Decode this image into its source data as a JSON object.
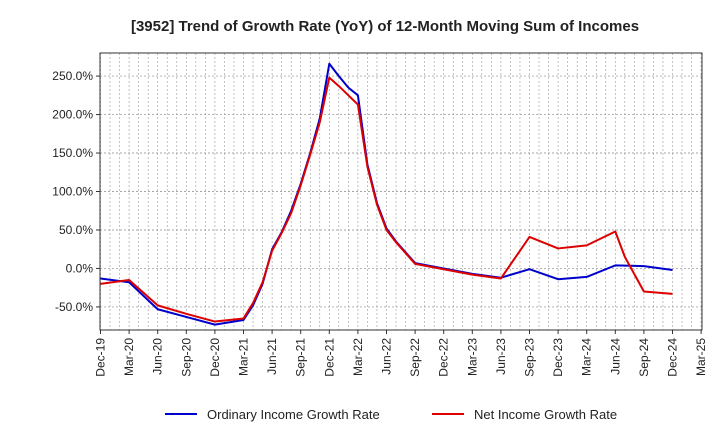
{
  "chart_data": {
    "type": "line",
    "title": "[3952]  Trend of Growth Rate (YoY) of 12-Month Moving Sum of Incomes",
    "xlabel": "",
    "ylabel": "",
    "ylim": [
      -80,
      280
    ],
    "yticks": [
      -50,
      0,
      50,
      100,
      150,
      200,
      250
    ],
    "ytick_labels": [
      "-50.0%",
      "0.0%",
      "50.0%",
      "100.0%",
      "150.0%",
      "200.0%",
      "250.0%"
    ],
    "x_tick_labels": [
      "Dec-19",
      "Mar-20",
      "Jun-20",
      "Sep-20",
      "Dec-20",
      "Mar-21",
      "Jun-21",
      "Sep-21",
      "Dec-21",
      "Mar-22",
      "Jun-22",
      "Sep-22",
      "Dec-22",
      "Mar-23",
      "Jun-23",
      "Sep-23",
      "Dec-23",
      "Mar-24",
      "Jun-24",
      "Sep-24",
      "Dec-24",
      "Mar-25"
    ],
    "grid": true,
    "legend_position": "bottom",
    "series": [
      {
        "name": "Ordinary Income Growth Rate",
        "color": "#0000cc",
        "points": [
          [
            0,
            -13
          ],
          [
            3,
            -18
          ],
          [
            6,
            -53
          ],
          [
            9,
            -63
          ],
          [
            12,
            -73
          ],
          [
            15,
            -67
          ],
          [
            16,
            -48
          ],
          [
            17,
            -20
          ],
          [
            18,
            25
          ],
          [
            19,
            47
          ],
          [
            20,
            75
          ],
          [
            21,
            110
          ],
          [
            22,
            150
          ],
          [
            23,
            195
          ],
          [
            24,
            266
          ],
          [
            25,
            250
          ],
          [
            26,
            235
          ],
          [
            27,
            225
          ],
          [
            28,
            135
          ],
          [
            29,
            85
          ],
          [
            30,
            52
          ],
          [
            31,
            35
          ],
          [
            33,
            7
          ],
          [
            36,
            0
          ],
          [
            39,
            -7
          ],
          [
            42,
            -12
          ],
          [
            45,
            -1
          ],
          [
            48,
            -14
          ],
          [
            51,
            -11
          ],
          [
            54,
            4
          ],
          [
            57,
            3
          ],
          [
            60,
            -2
          ]
        ]
      },
      {
        "name": "Net Income Growth Rate",
        "color": "#dd0000",
        "points": [
          [
            0,
            -20
          ],
          [
            3,
            -15
          ],
          [
            6,
            -48
          ],
          [
            9,
            -59
          ],
          [
            12,
            -69
          ],
          [
            15,
            -65
          ],
          [
            16,
            -45
          ],
          [
            17,
            -18
          ],
          [
            18,
            23
          ],
          [
            19,
            46
          ],
          [
            20,
            72
          ],
          [
            21,
            108
          ],
          [
            22,
            148
          ],
          [
            23,
            190
          ],
          [
            24,
            248
          ],
          [
            25,
            237
          ],
          [
            26,
            225
          ],
          [
            27,
            213
          ],
          [
            28,
            132
          ],
          [
            29,
            83
          ],
          [
            30,
            50
          ],
          [
            31,
            34
          ],
          [
            33,
            6
          ],
          [
            36,
            -1
          ],
          [
            39,
            -8
          ],
          [
            42,
            -13
          ],
          [
            45,
            41
          ],
          [
            48,
            26
          ],
          [
            51,
            30
          ],
          [
            54,
            48
          ],
          [
            55,
            15
          ],
          [
            57,
            -30
          ],
          [
            60,
            -33
          ]
        ]
      }
    ]
  }
}
